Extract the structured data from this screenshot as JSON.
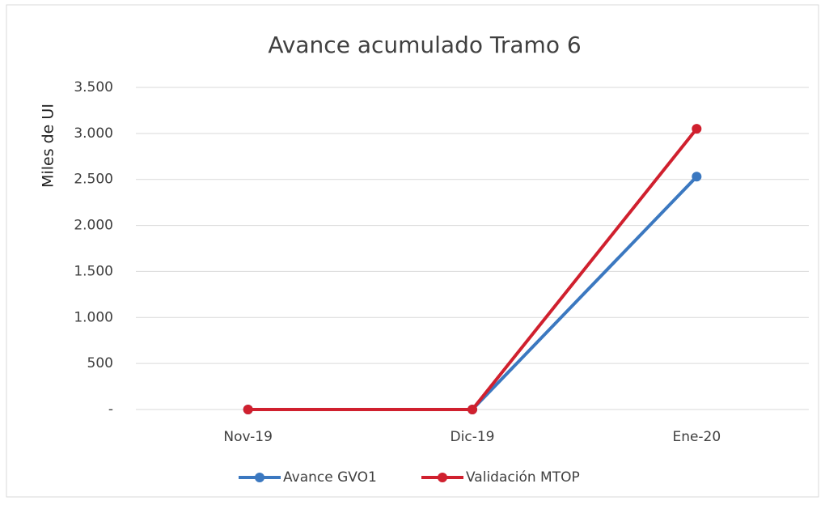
{
  "chart_data": {
    "type": "line",
    "title": "Avance acumulado Tramo 6",
    "ylabel": "Miles de UI",
    "categories": [
      "Nov-19",
      "Dic-19",
      "Ene-20"
    ],
    "series": [
      {
        "name": "Avance GVO1",
        "color": "#3b78c0",
        "values": [
          0,
          0,
          2530
        ]
      },
      {
        "name": "Validación MTOP",
        "color": "#d0202e",
        "values": [
          0,
          0,
          3050
        ]
      }
    ],
    "ylim": [
      0,
      3500
    ],
    "yticks": [
      {
        "value": 0,
        "label": "-"
      },
      500,
      {
        "value": 1000,
        "label": "1.000"
      },
      {
        "value": 1500,
        "label": "1.500"
      },
      {
        "value": 2000,
        "label": "2.000"
      },
      {
        "value": 2500,
        "label": "2.500"
      },
      {
        "value": 3000,
        "label": "3.000"
      },
      {
        "value": 3500,
        "label": "3.500"
      }
    ],
    "grid": true,
    "legend": "bottom"
  }
}
